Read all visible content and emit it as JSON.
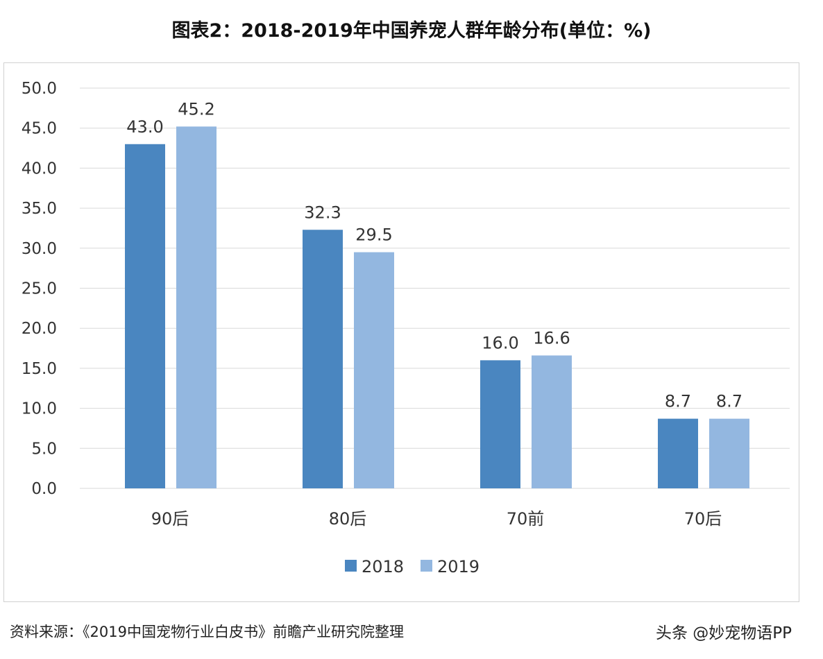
{
  "title": "图表2：2018-2019年中国养宠人群年龄分布(单位：%)",
  "source": "资料来源：《2019中国宠物行业白皮书》前瞻产业研究院整理",
  "watermark": "头条 @妙宠物语PP",
  "chart_data": {
    "type": "bar",
    "title": "图表2：2018-2019年中国养宠人群年龄分布(单位：%)",
    "categories": [
      "90后",
      "80后",
      "70前",
      "70后"
    ],
    "series": [
      {
        "name": "2018",
        "values": [
          43.0,
          32.3,
          16.0,
          8.7
        ],
        "color": "#4a86c0"
      },
      {
        "name": "2019",
        "values": [
          45.2,
          29.5,
          16.6,
          8.7
        ],
        "color": "#93b7e0"
      }
    ],
    "ylim": [
      0,
      50
    ],
    "yticks": [
      "0.0",
      "5.0",
      "10.0",
      "15.0",
      "20.0",
      "25.0",
      "30.0",
      "35.0",
      "40.0",
      "45.0",
      "50.0"
    ],
    "grid": true,
    "legend": "bottom"
  }
}
